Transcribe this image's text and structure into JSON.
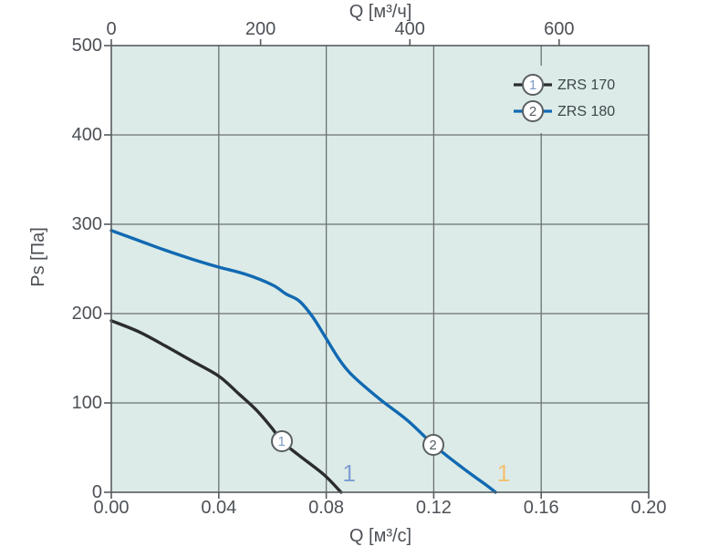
{
  "colors": {
    "plot_bg": "#dcebe7",
    "grid": "#6b7173",
    "axis_border": "#565c5f",
    "tick_text": "#4d5156",
    "legend_text": "#3f454b",
    "marker_stroke": "#5a5f63",
    "curve_zrs170": "#2b2c2e",
    "curve_zrs180": "#1169b2",
    "marker_num_1": "#7d9cc9",
    "marker_num_2": "#555e66",
    "annotation_blue": "#7f9ed2",
    "annotation_orange": "#f2c173"
  },
  "chart_data": {
    "type": "line",
    "title": "",
    "grid": true,
    "x_axis_bottom": {
      "label": "Q [м³/с]",
      "min": 0,
      "max": 0.2,
      "tick_values": [
        0,
        0.04,
        0.08,
        0.12,
        0.16,
        0.2
      ],
      "tick_labels": [
        "0.00",
        "0.04",
        "0.08",
        "0.12",
        "0.16",
        "0.20"
      ]
    },
    "x_axis_top": {
      "label": "Q [м³/ч]",
      "min": 0,
      "max": 720,
      "tick_values": [
        0,
        200,
        400,
        600
      ],
      "tick_labels": [
        "0",
        "200",
        "400",
        "600"
      ]
    },
    "y_axis": {
      "label": "Ps [Па]",
      "min": 0,
      "max": 500,
      "tick_values": [
        0,
        100,
        200,
        300,
        400,
        500
      ],
      "tick_labels": [
        "0",
        "100",
        "200",
        "300",
        "400",
        "500"
      ]
    },
    "legend": {
      "position": "top-right",
      "items": [
        {
          "marker": "1",
          "label": "ZRS 170",
          "color_key": "curve_zrs170",
          "num_color_key": "marker_num_1"
        },
        {
          "marker": "2",
          "label": "ZRS 180",
          "color_key": "curve_zrs180",
          "num_color_key": "marker_num_2"
        }
      ]
    },
    "series": [
      {
        "name": "ZRS 170",
        "marker": "1",
        "color_key": "curve_zrs170",
        "points": [
          [
            0,
            192
          ],
          [
            0.01,
            180
          ],
          [
            0.02,
            164
          ],
          [
            0.03,
            147
          ],
          [
            0.04,
            130
          ],
          [
            0.0475,
            110
          ],
          [
            0.054,
            92
          ],
          [
            0.06,
            71
          ],
          [
            0.0634,
            57
          ],
          [
            0.07,
            41
          ],
          [
            0.079,
            20
          ],
          [
            0.0855,
            0
          ]
        ]
      },
      {
        "name": "ZRS 180",
        "marker": "2",
        "color_key": "curve_zrs180",
        "points": [
          [
            0,
            293
          ],
          [
            0.01,
            282
          ],
          [
            0.02,
            271
          ],
          [
            0.03,
            261
          ],
          [
            0.04,
            252
          ],
          [
            0.05,
            244
          ],
          [
            0.06,
            232
          ],
          [
            0.065,
            222
          ],
          [
            0.07,
            214
          ],
          [
            0.075,
            196
          ],
          [
            0.08,
            172
          ],
          [
            0.085,
            148
          ],
          [
            0.09,
            130
          ],
          [
            0.1,
            104
          ],
          [
            0.11,
            81
          ],
          [
            0.12,
            53
          ],
          [
            0.13,
            29
          ],
          [
            0.14,
            7
          ],
          [
            0.143,
            0
          ]
        ]
      }
    ],
    "curve_markers": [
      {
        "marker": "1",
        "q": 0.0634,
        "ps": 57,
        "num_color_key": "marker_num_1"
      },
      {
        "marker": "2",
        "q": 0.1197,
        "ps": 53,
        "num_color_key": "marker_num_2"
      }
    ],
    "annotations": [
      {
        "text": "1",
        "q": 0.0885,
        "ps": 21,
        "color_key": "annotation_blue"
      },
      {
        "text": "1",
        "q": 0.146,
        "ps": 21,
        "color_key": "annotation_orange"
      }
    ]
  }
}
